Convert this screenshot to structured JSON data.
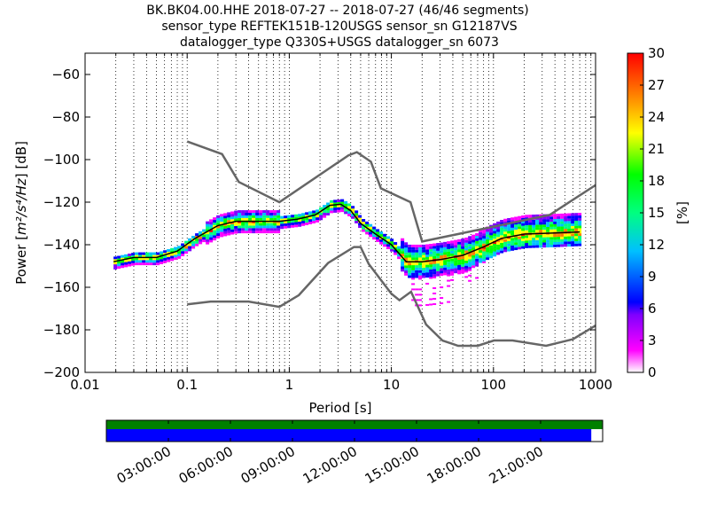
{
  "chart_data": [
    {
      "type": "heatmap",
      "title_lines": [
        "BK.BK04.00.HHE   2018-07-27 -- 2018-07-27  (46/46 segments)",
        "sensor_type REFTEK151B-120USGS sensor_sn G12187VS",
        "datalogger_type Q330S+USGS datalogger_sn 6073"
      ],
      "xlabel": "Period [s]",
      "ylabel_parts": {
        "pre": "Power [",
        "math": "m²/s⁴/Hz",
        "post": "] [dB]"
      },
      "xscale": "log",
      "xlim": [
        0.01,
        1000
      ],
      "ylim": [
        -200,
        -50
      ],
      "x_ticks": [
        {
          "value": 0.01,
          "label": "0.01"
        },
        {
          "value": 0.1,
          "label": "0.1"
        },
        {
          "value": 1,
          "label": "1"
        },
        {
          "value": 10,
          "label": "10"
        },
        {
          "value": 100,
          "label": "100"
        },
        {
          "value": 1000,
          "label": "1000"
        }
      ],
      "y_ticks": [
        {
          "value": -60,
          "label": "−60"
        },
        {
          "value": -80,
          "label": "−80"
        },
        {
          "value": -100,
          "label": "−100"
        },
        {
          "value": -120,
          "label": "−120"
        },
        {
          "value": -140,
          "label": "−140"
        },
        {
          "value": -160,
          "label": "−160"
        },
        {
          "value": -180,
          "label": "−180"
        },
        {
          "value": -200,
          "label": "−200"
        }
      ],
      "grid": "vertical dotted at log subdivisions",
      "noise_models": {
        "color": "#666666",
        "high_noise_model": [
          [
            0.1,
            -91.5
          ],
          [
            0.22,
            -97.4
          ],
          [
            0.32,
            -110.5
          ],
          [
            0.8,
            -120
          ],
          [
            3.8,
            -98
          ],
          [
            4.6,
            -96.5
          ],
          [
            6.3,
            -101
          ],
          [
            7.9,
            -113.5
          ],
          [
            15.4,
            -120
          ],
          [
            20,
            -138.5
          ],
          [
            354.8,
            -126
          ],
          [
            1000,
            -112
          ]
        ],
        "low_noise_model": [
          [
            0.1,
            -168
          ],
          [
            0.17,
            -166.7
          ],
          [
            0.4,
            -166.7
          ],
          [
            0.8,
            -169.2
          ],
          [
            1.24,
            -163.7
          ],
          [
            2.4,
            -148.6
          ],
          [
            4.3,
            -141.1
          ],
          [
            5,
            -141.1
          ],
          [
            6,
            -149
          ],
          [
            10,
            -163
          ],
          [
            12,
            -166.1
          ],
          [
            15.6,
            -162.1
          ],
          [
            21.9,
            -177.5
          ],
          [
            31.6,
            -185
          ],
          [
            45,
            -187.5
          ],
          [
            70,
            -187.5
          ],
          [
            101,
            -185
          ],
          [
            154,
            -185
          ],
          [
            328,
            -187.5
          ],
          [
            600,
            -184.4
          ],
          [
            1000,
            -178
          ]
        ]
      },
      "mean_curve": [
        [
          0.019,
          -148
        ],
        [
          0.03,
          -146
        ],
        [
          0.05,
          -146
        ],
        [
          0.08,
          -143
        ],
        [
          0.12,
          -137
        ],
        [
          0.2,
          -131
        ],
        [
          0.3,
          -129
        ],
        [
          0.5,
          -129
        ],
        [
          0.8,
          -129
        ],
        [
          1.2,
          -128
        ],
        [
          1.8,
          -126
        ],
        [
          2.5,
          -121.5
        ],
        [
          3.2,
          -121
        ],
        [
          4,
          -124
        ],
        [
          5,
          -130
        ],
        [
          7,
          -135
        ],
        [
          10,
          -140
        ],
        [
          14,
          -148
        ],
        [
          20,
          -148
        ],
        [
          30,
          -147
        ],
        [
          50,
          -145
        ],
        [
          80,
          -141
        ],
        [
          120,
          -137
        ],
        [
          200,
          -135
        ],
        [
          400,
          -134.5
        ],
        [
          700,
          -134
        ]
      ],
      "colorbar": {
        "label": "[%]",
        "min": 0,
        "max": 30,
        "ticks": [
          0,
          3,
          6,
          9,
          12,
          15,
          18,
          21,
          24,
          27,
          30
        ],
        "colormap": "pqlx",
        "colors": [
          "#ffffff",
          "#ff00ff",
          "#8000ff",
          "#0000ff",
          "#00c0ff",
          "#00ff80",
          "#00ff00",
          "#ffff00",
          "#ff8000",
          "#ff0000"
        ]
      }
    },
    {
      "type": "timeline",
      "xlim_hours": [
        0,
        24
      ],
      "ticks": [
        {
          "hour": 3,
          "label": "03:00:00"
        },
        {
          "hour": 6,
          "label": "06:00:00"
        },
        {
          "hour": 9,
          "label": "09:00:00"
        },
        {
          "hour": 12,
          "label": "12:00:00"
        },
        {
          "hour": 15,
          "label": "15:00:00"
        },
        {
          "hour": 18,
          "label": "18:00:00"
        },
        {
          "hour": 21,
          "label": "21:00:00"
        }
      ],
      "data_coverage_hours": [
        0,
        24
      ],
      "psd_coverage_hours": [
        0,
        23.45
      ],
      "colors": {
        "data": "#008000",
        "psd": "#0000ff"
      }
    }
  ]
}
